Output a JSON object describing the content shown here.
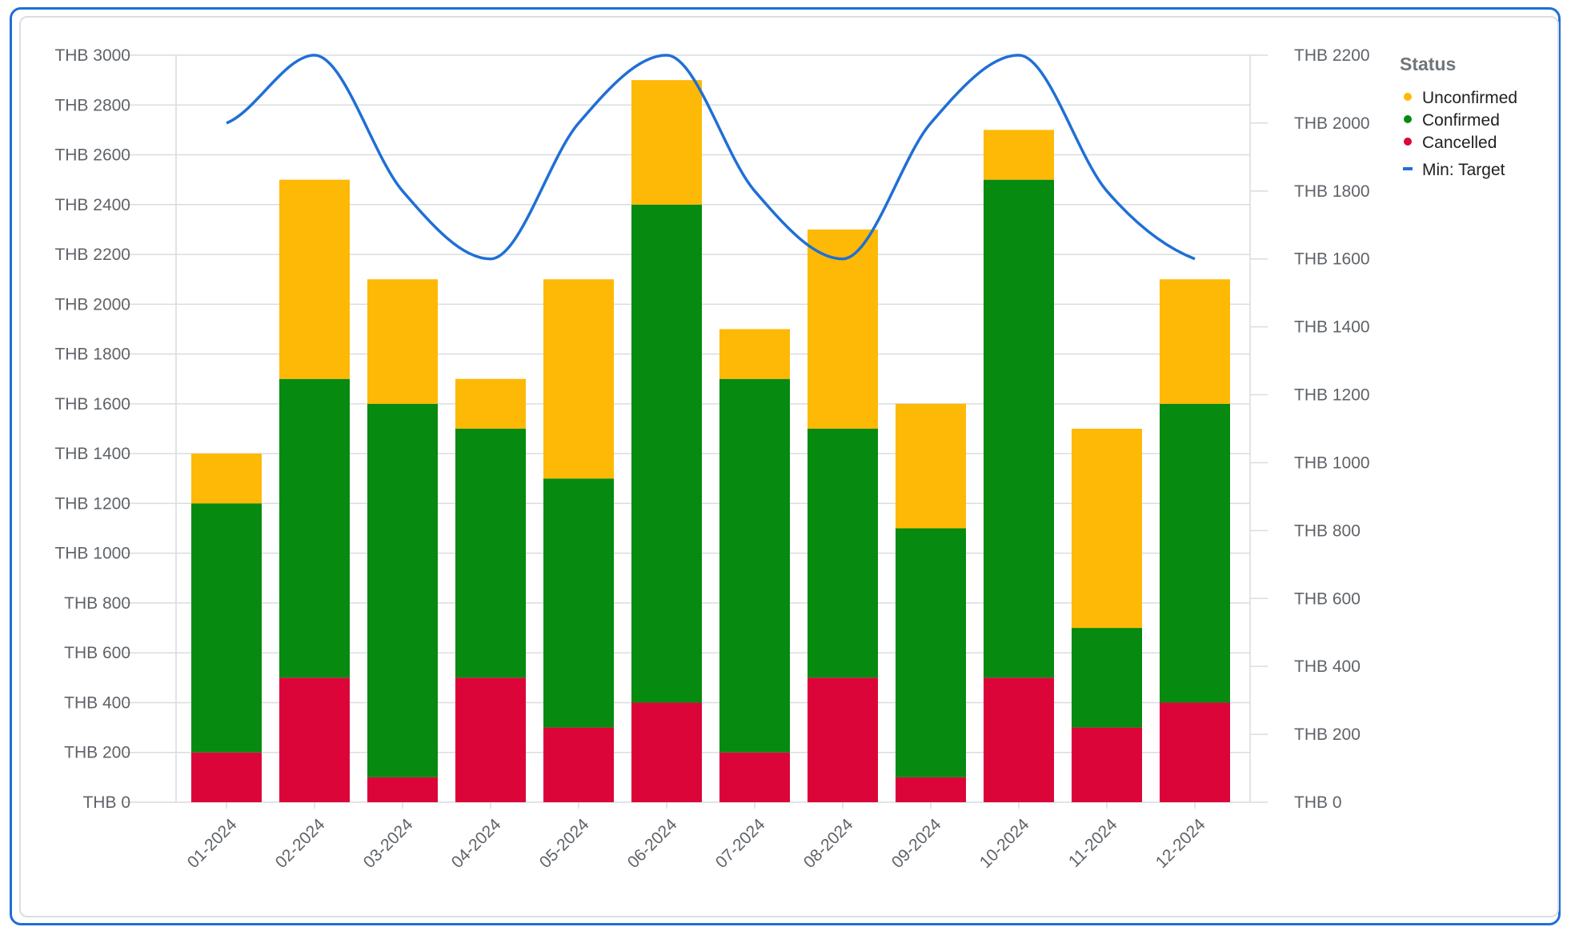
{
  "chart_data": {
    "type": "bar",
    "stacked": true,
    "categories": [
      "01-2024",
      "02-2024",
      "03-2024",
      "04-2024",
      "05-2024",
      "06-2024",
      "07-2024",
      "08-2024",
      "09-2024",
      "10-2024",
      "11-2024",
      "12-2024"
    ],
    "series": [
      {
        "name": "Cancelled",
        "color": "#dc0539",
        "values": [
          200,
          500,
          100,
          500,
          300,
          400,
          200,
          500,
          100,
          500,
          300,
          400
        ]
      },
      {
        "name": "Confirmed",
        "color": "#068a10",
        "values": [
          1000,
          1200,
          1500,
          1000,
          1000,
          2000,
          1500,
          1000,
          1000,
          2000,
          400,
          1200
        ]
      },
      {
        "name": "Unconfirmed",
        "color": "#fdb905",
        "values": [
          200,
          800,
          500,
          200,
          800,
          500,
          200,
          800,
          500,
          200,
          800,
          500
        ]
      }
    ],
    "line_series": {
      "name": "Min: Target",
      "color": "#1f6fd6",
      "axis": "right",
      "values": [
        2000,
        2200,
        1800,
        1600,
        2000,
        2200,
        1800,
        1600,
        2000,
        2200,
        1800,
        1600
      ]
    },
    "left_axis": {
      "ylim": [
        0,
        3000
      ],
      "ticks": [
        "THB 0",
        "THB 200",
        "THB 400",
        "THB 600",
        "THB 800",
        "THB 1000",
        "THB 1200",
        "THB 1400",
        "THB 1600",
        "THB 1800",
        "THB 2000",
        "THB 2200",
        "THB 2400",
        "THB 2600",
        "THB 2800",
        "THB 3000"
      ]
    },
    "right_axis": {
      "ylim": [
        0,
        2200
      ],
      "ticks": [
        "THB 0",
        "THB 200",
        "THB 400",
        "THB 600",
        "THB 800",
        "THB 1000",
        "THB 1200",
        "THB 1400",
        "THB 1600",
        "THB 1800",
        "THB 2000",
        "THB 2200"
      ]
    },
    "legend": {
      "title": "Status",
      "position": "right",
      "items": [
        {
          "label": "Unconfirmed",
          "color": "#fdb905",
          "marker": "dot"
        },
        {
          "label": "Confirmed",
          "color": "#068a10",
          "marker": "dot"
        },
        {
          "label": "Cancelled",
          "color": "#dc0539",
          "marker": "dot"
        },
        {
          "label": "Min: Target",
          "color": "#1f6fd6",
          "marker": "line"
        }
      ]
    },
    "grid": true,
    "title": "",
    "xlabel": "",
    "ylabel": ""
  }
}
